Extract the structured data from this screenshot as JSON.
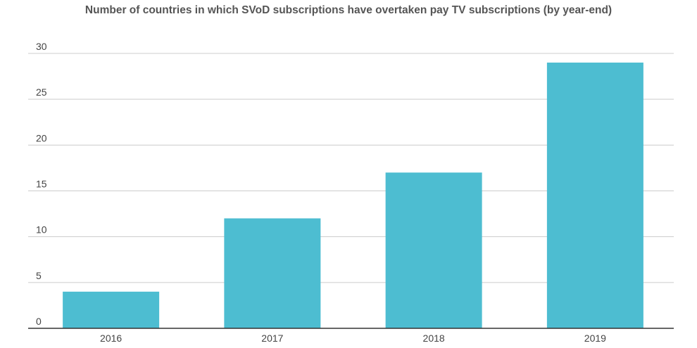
{
  "chart_data": {
    "type": "bar",
    "title": "Number of countries in which SVoD subscriptions have overtaken pay TV subscriptions (by year-end)",
    "xlabel": "",
    "ylabel": "",
    "categories": [
      "2016",
      "2017",
      "2018",
      "2019"
    ],
    "values": [
      4,
      12,
      17,
      29
    ],
    "ylim": [
      0,
      30
    ],
    "yticks": [
      0,
      5,
      10,
      15,
      20,
      25,
      30
    ],
    "grid": true,
    "legend": "none",
    "bar_color": "#4dbdd1",
    "grid_color": "#cccccc",
    "axis_color": "#333333"
  }
}
